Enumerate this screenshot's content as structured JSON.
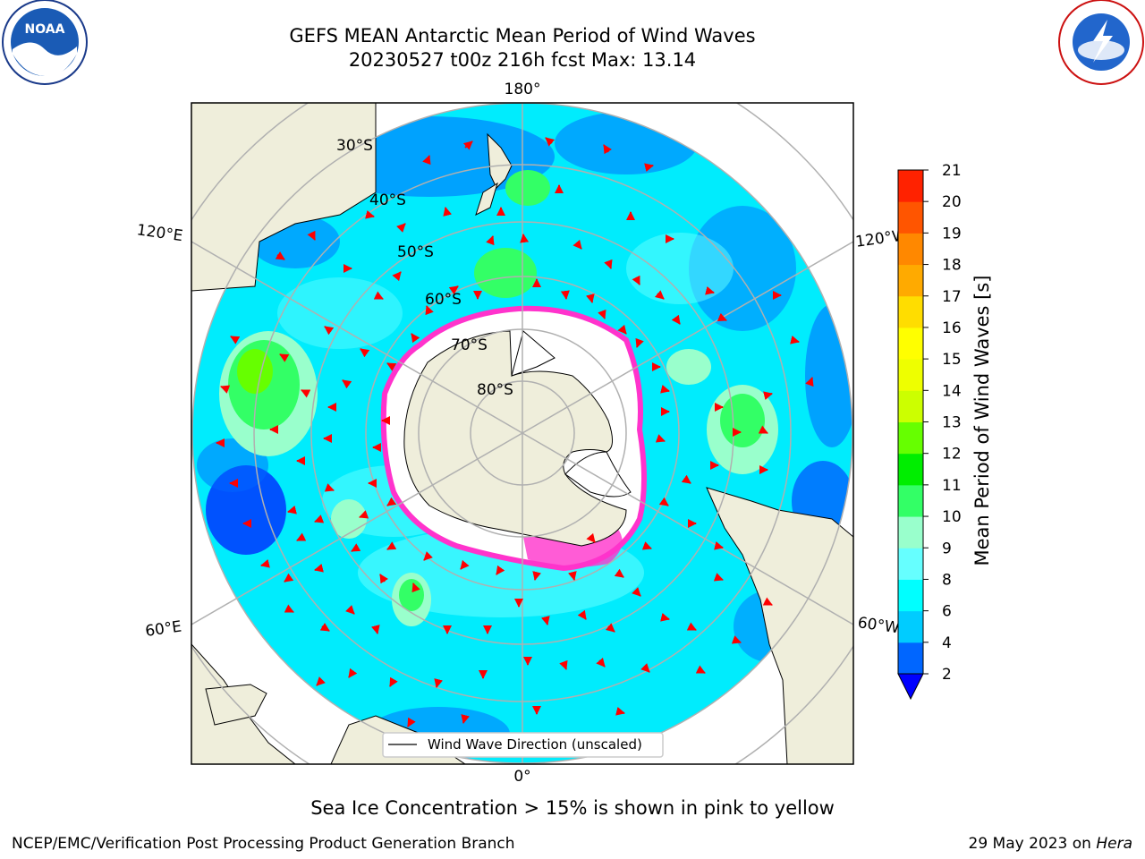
{
  "title": {
    "line1": "GEFS MEAN Antarctic Mean Period of Wind Waves",
    "line2": "20230527 t00z 216h fcst   Max: 13.14"
  },
  "map": {
    "projection": "south-polar-stereographic",
    "lon_labels": {
      "top": "180°",
      "bottom": "0°",
      "upper_left": "120°E",
      "upper_right": "120°W",
      "lower_left": "60°E",
      "lower_right": "60°W"
    },
    "lat_labels": [
      "30°S",
      "40°S",
      "50°S",
      "60°S",
      "70°S",
      "80°S"
    ],
    "colors": {
      "land": "#efeedb",
      "ocean_base": "#00ecfd",
      "ice": "#ffffff",
      "ice_edge": "#ff33cc",
      "arrow": "#ff0000",
      "grid": "#b0b0b0"
    },
    "legend_label": "Wind Wave Direction (unscaled)"
  },
  "colorbar": {
    "label": "Mean Period of Wind Waves [s]",
    "ticks": [
      "2",
      "4",
      "6",
      "8",
      "9",
      "10",
      "11",
      "12",
      "13",
      "14",
      "15",
      "16",
      "17",
      "18",
      "19",
      "20",
      "21"
    ],
    "colors": [
      "#0066ff",
      "#00ccff",
      "#00ffff",
      "#66ffff",
      "#99ffcc",
      "#33ff66",
      "#00ee00",
      "#66ff00",
      "#ccff00",
      "#eeff00",
      "#ffff00",
      "#ffdd00",
      "#ffaa00",
      "#ff8800",
      "#ff5500",
      "#ff2200"
    ],
    "under_color": "#0000ff"
  },
  "note": "Sea Ice Concentration > 15% is shown in pink to yellow",
  "footer": {
    "left": "NCEP/EMC/Verification Post Processing Product Generation Branch",
    "right_date": "29 May 2023 on ",
    "right_machine": "Hera"
  }
}
